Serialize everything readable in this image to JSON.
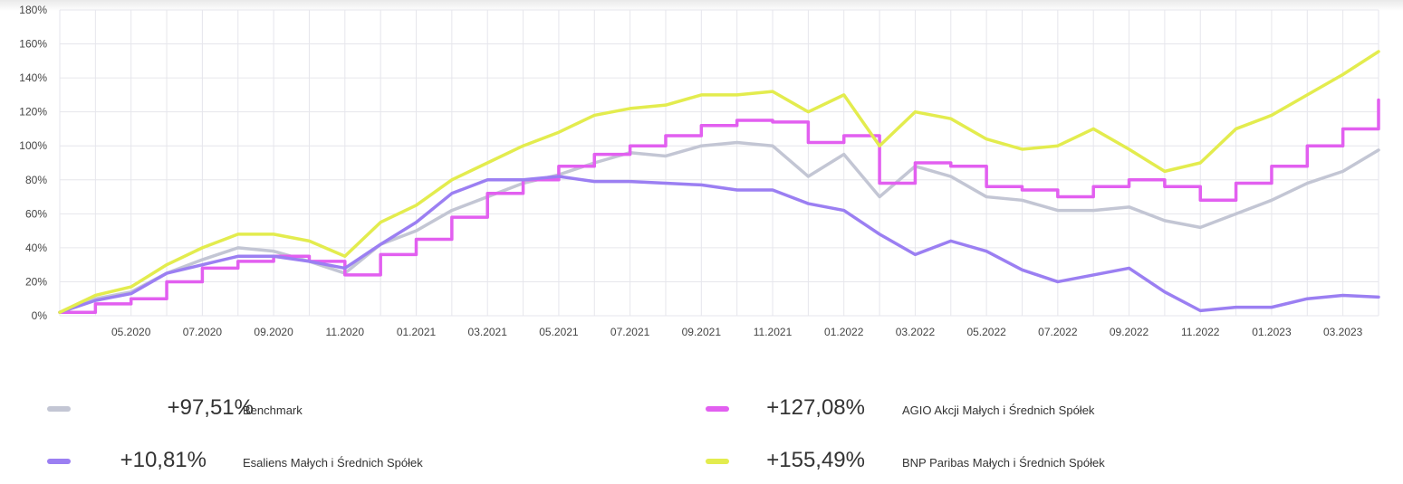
{
  "chart_data": {
    "type": "line",
    "y_ticks": [
      "180%",
      "160%",
      "140%",
      "120%",
      "100%",
      "80%",
      "60%",
      "40%",
      "20%",
      "0%"
    ],
    "ylim": [
      0,
      180
    ],
    "x_ticks": [
      "05.2020",
      "07.2020",
      "09.2020",
      "11.2020",
      "01.2021",
      "03.2021",
      "05.2021",
      "07.2021",
      "09.2021",
      "11.2021",
      "01.2022",
      "03.2022",
      "05.2022",
      "07.2022",
      "09.2022",
      "11.2022",
      "01.2023",
      "03.2023"
    ],
    "x": [
      "03.2020",
      "04.2020",
      "05.2020",
      "06.2020",
      "07.2020",
      "08.2020",
      "09.2020",
      "10.2020",
      "11.2020",
      "12.2020",
      "01.2021",
      "02.2021",
      "03.2021",
      "04.2021",
      "05.2021",
      "06.2021",
      "07.2021",
      "08.2021",
      "09.2021",
      "10.2021",
      "11.2021",
      "12.2021",
      "01.2022",
      "02.2022",
      "03.2022",
      "04.2022",
      "05.2022",
      "06.2022",
      "07.2022",
      "08.2022",
      "09.2022",
      "10.2022",
      "11.2022",
      "12.2022",
      "01.2023",
      "02.2023",
      "03.2023",
      "04.2023"
    ],
    "grid": true,
    "series": [
      {
        "name": "Benchmark",
        "color": "#c3c6d4",
        "values": [
          2,
          10,
          14,
          25,
          33,
          40,
          38,
          32,
          25,
          42,
          50,
          62,
          70,
          78,
          83,
          90,
          96,
          94,
          100,
          102,
          100,
          82,
          95,
          70,
          88,
          82,
          70,
          68,
          62,
          62,
          64,
          56,
          52,
          60,
          68,
          78,
          85,
          97.5
        ]
      },
      {
        "name": "AGIO Akcji Małych i Średnich Spółek",
        "color": "#e25ff0",
        "values": [
          2,
          7,
          10,
          20,
          28,
          32,
          35,
          32,
          24,
          36,
          45,
          58,
          72,
          80,
          88,
          95,
          100,
          106,
          112,
          115,
          114,
          102,
          106,
          78,
          90,
          88,
          76,
          74,
          70,
          76,
          80,
          76,
          68,
          78,
          88,
          100,
          110,
          127
        ]
      },
      {
        "name": "Esaliens Małych i Średnich Spółek",
        "color": "#9b7ff2",
        "values": [
          2,
          9,
          13,
          25,
          30,
          35,
          35,
          32,
          28,
          42,
          55,
          72,
          80,
          80,
          82,
          79,
          79,
          78,
          77,
          74,
          74,
          66,
          62,
          48,
          36,
          44,
          38,
          27,
          20,
          24,
          28,
          14,
          3,
          5,
          5,
          10,
          12,
          11
        ]
      },
      {
        "name": "BNP Paribas Małych i Średnich Spółek",
        "color": "#e3ec4e",
        "values": [
          2,
          12,
          17,
          30,
          40,
          48,
          48,
          44,
          35,
          55,
          65,
          80,
          90,
          100,
          108,
          118,
          122,
          124,
          130,
          130,
          132,
          120,
          130,
          100,
          120,
          116,
          104,
          98,
          100,
          110,
          98,
          85,
          90,
          110,
          118,
          130,
          142,
          155.5
        ]
      }
    ]
  },
  "legend": [
    {
      "value": "+97,51%",
      "name": "Benchmark",
      "color": "#c3c6d4"
    },
    {
      "value": "+127,08%",
      "name": "AGIO Akcji Małych i Średnich Spółek",
      "color": "#e25ff0"
    },
    {
      "value": "+10,81%",
      "name": "Esaliens Małych i Średnich Spółek",
      "color": "#9b7ff2"
    },
    {
      "value": "+155,49%",
      "name": "BNP Paribas Małych i Średnich Spółek",
      "color": "#e3ec4e"
    }
  ]
}
